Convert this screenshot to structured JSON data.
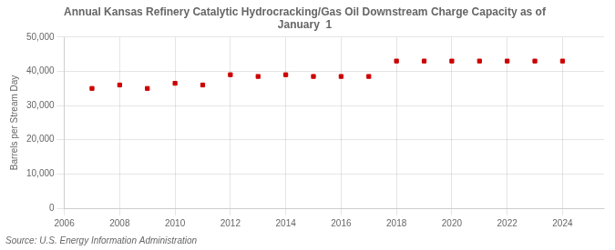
{
  "chart_data": {
    "type": "scatter",
    "title": "Annual Kansas Refinery Catalytic Hydrocracking/Gas Oil Downstream Charge Capacity as of\nJanuary  1",
    "ylabel": "Barrels per Stream Day",
    "source": "Source: U.S. Energy Information Administration",
    "x": [
      2007,
      2008,
      2009,
      2010,
      2011,
      2012,
      2013,
      2014,
      2015,
      2016,
      2017,
      2018,
      2019,
      2020,
      2021,
      2022,
      2023,
      2024
    ],
    "values": [
      35000,
      36000,
      35000,
      36500,
      36000,
      39000,
      38500,
      39000,
      38500,
      38500,
      38500,
      43000,
      43000,
      43000,
      43000,
      43000,
      43000,
      43000
    ],
    "color": "#cc0000",
    "marker": "square",
    "xlim": [
      2006,
      2025.5
    ],
    "ylim": [
      0,
      50000
    ],
    "xticks": [
      2006,
      2008,
      2010,
      2012,
      2014,
      2016,
      2018,
      2020,
      2022,
      2024
    ],
    "yticks": [
      0,
      {
        "value": 10000,
        "label": "10,000"
      },
      {
        "value": 20000,
        "label": "20,000"
      },
      {
        "value": 30000,
        "label": "30,000"
      },
      {
        "value": 40000,
        "label": "40,000"
      },
      {
        "value": 50000,
        "label": "50,000"
      }
    ],
    "grid": true
  }
}
